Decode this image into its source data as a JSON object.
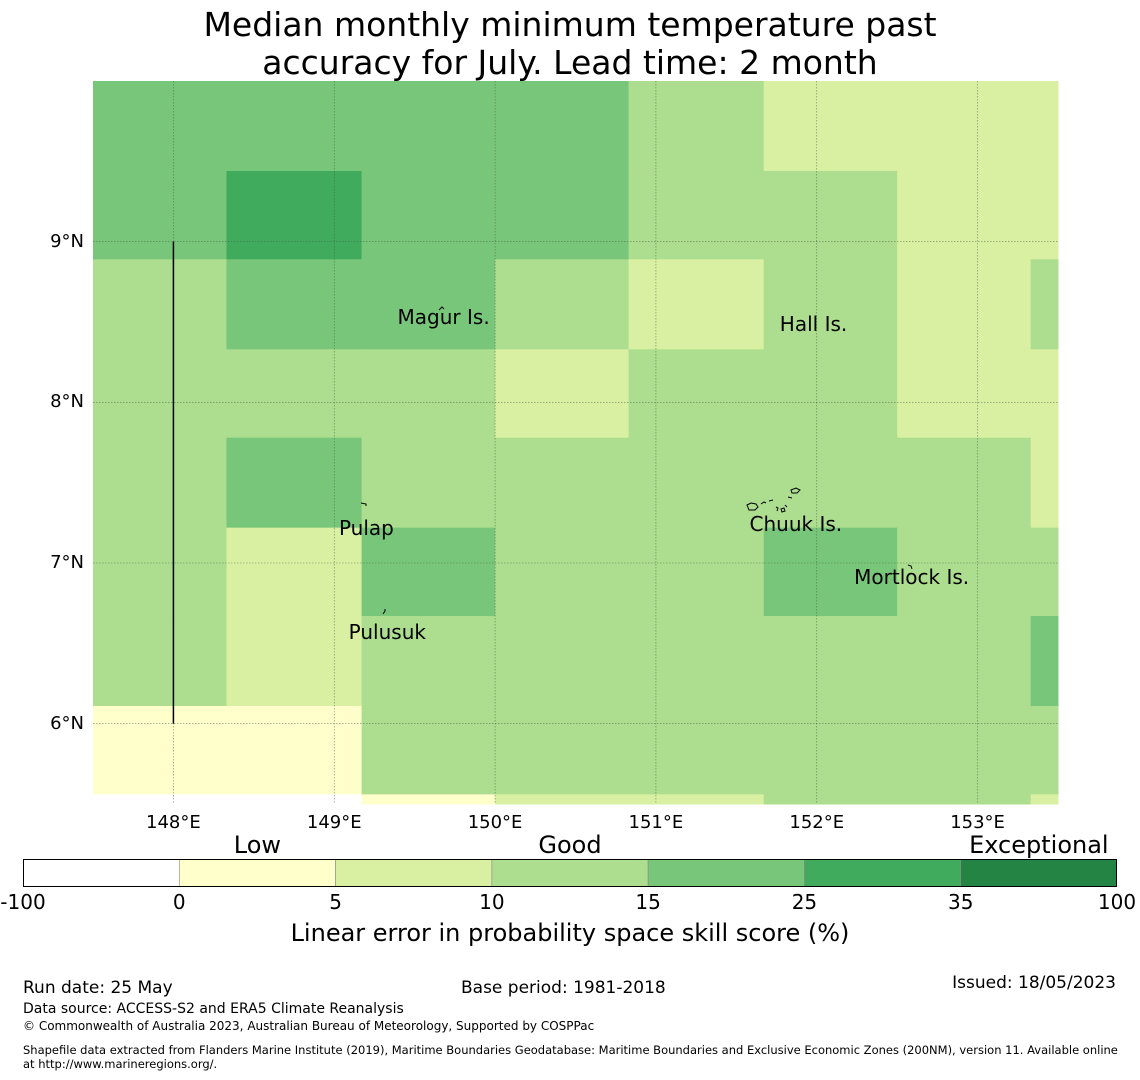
{
  "title": "Median monthly minimum temperature past\naccuracy for July. Lead time: 2 month",
  "map": {
    "lon_range": [
      147.5,
      153.5
    ],
    "lat_range": [
      5.5,
      10.0
    ],
    "lat_ticks": [
      {
        "value": 9,
        "label": "9°N"
      },
      {
        "value": 8,
        "label": "8°N"
      },
      {
        "value": 7,
        "label": "7°N"
      },
      {
        "value": 6,
        "label": "6°N"
      }
    ],
    "lon_ticks": [
      {
        "value": 148,
        "label": "148°E"
      },
      {
        "value": 149,
        "label": "149°E"
      },
      {
        "value": 150,
        "label": "150°E"
      },
      {
        "value": 151,
        "label": "151°E"
      },
      {
        "value": 152,
        "label": "152°E"
      },
      {
        "value": 153,
        "label": "153°E"
      }
    ],
    "grid": true,
    "boundary_line": {
      "lon": 148.0,
      "lat_from": 6.0,
      "lat_to": 9.0
    },
    "cell_columns_lon": [
      147.5,
      148.33,
      149.17,
      150.0,
      150.83,
      151.67,
      152.5,
      153.33,
      153.5
    ],
    "cell_rows_lat": [
      10.0,
      9.44,
      8.89,
      8.33,
      7.78,
      7.22,
      6.67,
      6.11,
      5.56,
      5.5
    ],
    "skill_categories_grid": [
      [
        4,
        4,
        4,
        4,
        3,
        2,
        2,
        2
      ],
      [
        4,
        5,
        4,
        4,
        3,
        3,
        2,
        2
      ],
      [
        3,
        4,
        4,
        3,
        2,
        3,
        2,
        3
      ],
      [
        3,
        3,
        3,
        2,
        3,
        3,
        2,
        2
      ],
      [
        3,
        4,
        3,
        3,
        3,
        3,
        3,
        2
      ],
      [
        3,
        2,
        4,
        3,
        3,
        4,
        3,
        3
      ],
      [
        3,
        2,
        3,
        3,
        3,
        3,
        3,
        4
      ],
      [
        1,
        1,
        3,
        3,
        3,
        3,
        3,
        3
      ],
      [
        0,
        0,
        1,
        2,
        2,
        3,
        3,
        2
      ]
    ],
    "places": [
      {
        "name": "Magur Is.",
        "lon": 149.68,
        "lat": 8.53
      },
      {
        "name": "Hall Is.",
        "lon": 151.98,
        "lat": 8.49
      },
      {
        "name": "Pulap",
        "lon": 149.2,
        "lat": 7.22
      },
      {
        "name": "Chuuk Is.",
        "lon": 151.87,
        "lat": 7.24
      },
      {
        "name": "Mortlock Is.",
        "lon": 152.59,
        "lat": 6.91
      },
      {
        "name": "Pulusuk",
        "lon": 149.33,
        "lat": 6.57
      }
    ]
  },
  "colorbar": {
    "categories": [
      {
        "label": "Low",
        "center_index": 1.5
      },
      {
        "label": "Good",
        "center_index": 3.5
      },
      {
        "label": "Exceptional",
        "center_index": 6.5
      }
    ],
    "bins": [
      {
        "from": -100,
        "to": 0,
        "color": "#ffffff"
      },
      {
        "from": 0,
        "to": 5,
        "color": "#ffffcc"
      },
      {
        "from": 5,
        "to": 10,
        "color": "#d9f0a3"
      },
      {
        "from": 10,
        "to": 15,
        "color": "#addd8e"
      },
      {
        "from": 15,
        "to": 25,
        "color": "#78c679"
      },
      {
        "from": 25,
        "to": 35,
        "color": "#41ab5d"
      },
      {
        "from": 35,
        "to": 100,
        "color": "#238443"
      }
    ],
    "tick_labels": [
      "-100",
      "0",
      "5",
      "10",
      "15",
      "25",
      "35",
      "100"
    ],
    "label": "Linear error in probability space skill score (%)"
  },
  "footer": {
    "run_date": "Run date: 25 May",
    "base_period": "Base period: 1981-2018",
    "issued": "Issued: 18/05/2023",
    "data_source": "Data source: ACCESS-S2 and ERA5 Climate Reanalysis",
    "copyright": "© Commonwealth of Australia 2023, Australian Bureau of Meteorology, Supported by COSPPac",
    "shapefile_note": "Shapefile data extracted from Flanders Marine Institute (2019), Maritime Boundaries Geodatabase: Maritime Boundaries and Exclusive Economic Zones (200NM), version 11. Available online at http://www.marineregions.org/."
  }
}
